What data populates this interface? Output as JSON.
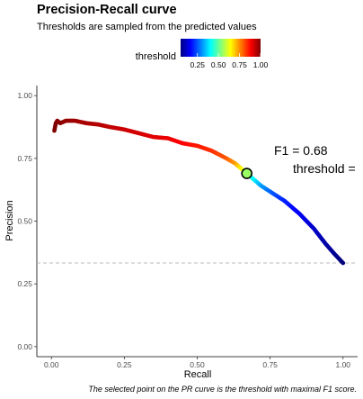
{
  "chart_data": {
    "type": "scatter",
    "title": "Precision-Recall curve",
    "subtitle": "Thresholds are sampled from the predicted values",
    "xlabel": "Recall",
    "ylabel": "Precision",
    "caption": "The selected point on the PR curve is the threshold with maximal F1 score.",
    "xlim": [
      -0.05,
      1.05
    ],
    "ylim": [
      -0.04,
      1.04
    ],
    "x_ticks": [
      "0.00",
      "0.25",
      "0.50",
      "0.75",
      "1.00"
    ],
    "y_ticks": [
      "0.00",
      "0.25",
      "0.50",
      "0.75",
      "1.00"
    ],
    "grid": false,
    "legend": {
      "title": "threshold",
      "position": "top",
      "ticks": [
        "0.25",
        "0.50",
        "0.75",
        "1.00"
      ],
      "tick_values": [
        0.25,
        0.5,
        0.75,
        1.0
      ],
      "range": [
        0.05,
        1.0
      ],
      "colormap": [
        "#00007F",
        "#0000FF",
        "#007FFF",
        "#00FFFF",
        "#7FFF7F",
        "#FFFF00",
        "#FF7F00",
        "#FF0000",
        "#7F0000"
      ]
    },
    "baseline": {
      "y": 0.333,
      "style": "dashed",
      "color": "#bbbbbb"
    },
    "curve": [
      {
        "recall": 0.01,
        "precision": 0.86,
        "threshold": 1.0
      },
      {
        "recall": 0.015,
        "precision": 0.89,
        "threshold": 1.0
      },
      {
        "recall": 0.02,
        "precision": 0.9,
        "threshold": 0.99
      },
      {
        "recall": 0.03,
        "precision": 0.89,
        "threshold": 0.99
      },
      {
        "recall": 0.05,
        "precision": 0.9,
        "threshold": 0.98
      },
      {
        "recall": 0.08,
        "precision": 0.9,
        "threshold": 0.97
      },
      {
        "recall": 0.12,
        "precision": 0.89,
        "threshold": 0.96
      },
      {
        "recall": 0.16,
        "precision": 0.885,
        "threshold": 0.95
      },
      {
        "recall": 0.2,
        "precision": 0.875,
        "threshold": 0.94
      },
      {
        "recall": 0.25,
        "precision": 0.865,
        "threshold": 0.93
      },
      {
        "recall": 0.3,
        "precision": 0.85,
        "threshold": 0.92
      },
      {
        "recall": 0.35,
        "precision": 0.835,
        "threshold": 0.91
      },
      {
        "recall": 0.4,
        "precision": 0.83,
        "threshold": 0.9
      },
      {
        "recall": 0.45,
        "precision": 0.81,
        "threshold": 0.88
      },
      {
        "recall": 0.5,
        "precision": 0.8,
        "threshold": 0.86
      },
      {
        "recall": 0.55,
        "precision": 0.78,
        "threshold": 0.84
      },
      {
        "recall": 0.6,
        "precision": 0.75,
        "threshold": 0.8
      },
      {
        "recall": 0.63,
        "precision": 0.73,
        "threshold": 0.74
      },
      {
        "recall": 0.65,
        "precision": 0.71,
        "threshold": 0.66
      },
      {
        "recall": 0.67,
        "precision": 0.69,
        "threshold": 0.55
      },
      {
        "recall": 0.69,
        "precision": 0.67,
        "threshold": 0.42
      },
      {
        "recall": 0.72,
        "precision": 0.64,
        "threshold": 0.32
      },
      {
        "recall": 0.76,
        "precision": 0.61,
        "threshold": 0.25
      },
      {
        "recall": 0.8,
        "precision": 0.58,
        "threshold": 0.2
      },
      {
        "recall": 0.85,
        "precision": 0.53,
        "threshold": 0.16
      },
      {
        "recall": 0.9,
        "precision": 0.47,
        "threshold": 0.12
      },
      {
        "recall": 0.94,
        "precision": 0.41,
        "threshold": 0.09
      },
      {
        "recall": 0.97,
        "precision": 0.37,
        "threshold": 0.07
      },
      {
        "recall": 1.0,
        "precision": 0.333,
        "threshold": 0.05
      }
    ],
    "selected_point": {
      "recall": 0.67,
      "precision": 0.69,
      "threshold": 0.55
    },
    "annotations": {
      "f1": "F1 = 0.68",
      "threshold": "threshold ="
    }
  }
}
